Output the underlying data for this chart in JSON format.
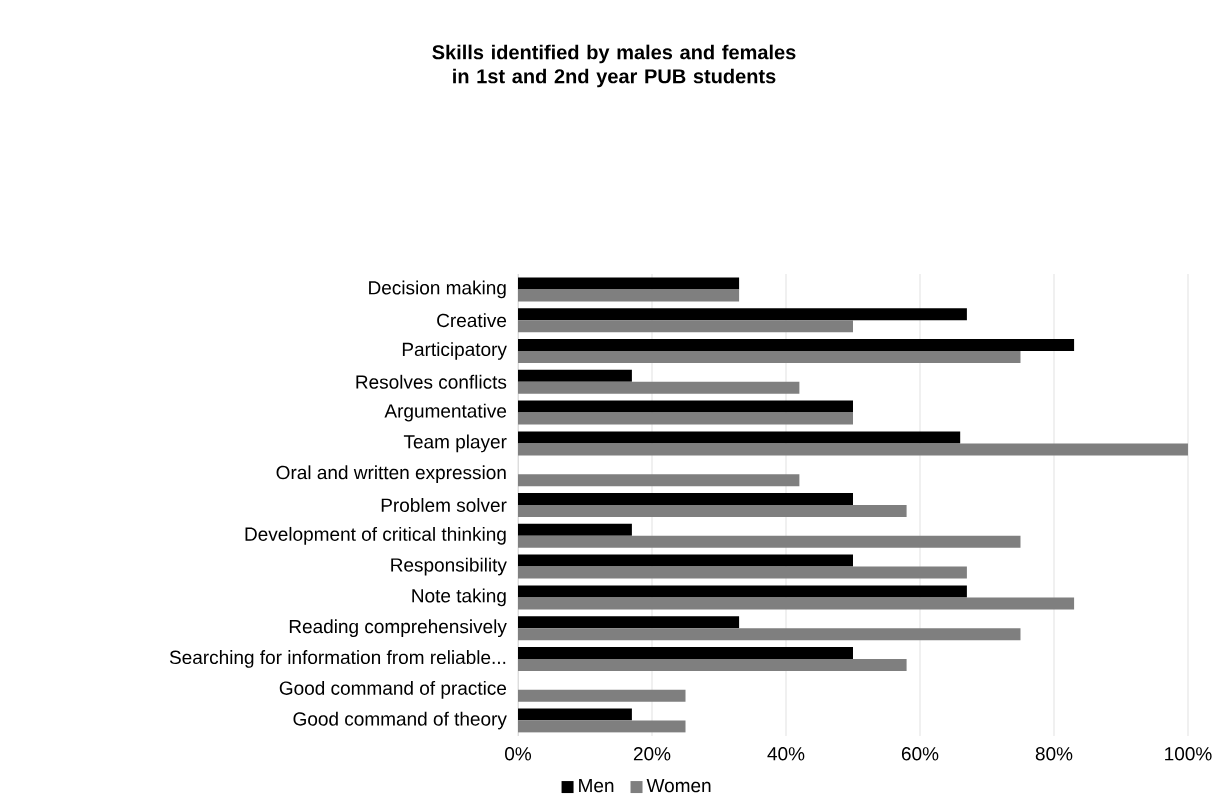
{
  "chart_data": {
    "type": "bar",
    "orientation": "horizontal",
    "title": "Skills identified by males and females in 1st and 2nd year PUB students",
    "categories": [
      "Decision making",
      "Creative",
      "Participatory",
      "Resolves conflicts",
      "Argumentative",
      "Team player",
      "Oral and written expression",
      "Problem solver",
      "Development of critical thinking",
      "Responsibility",
      "Note taking",
      "Reading comprehensively",
      "Searching for information from reliable...",
      "Good command of practice",
      "Good command of theory"
    ],
    "series": [
      {
        "name": "Men",
        "color": "#000000",
        "values": [
          33,
          67,
          83,
          17,
          50,
          66,
          null,
          50,
          17,
          50,
          67,
          33,
          50,
          null,
          17
        ]
      },
      {
        "name": "Women",
        "color": "#7f7f7f",
        "values": [
          33,
          50,
          75,
          42,
          50,
          100,
          42,
          58,
          75,
          67,
          83,
          75,
          58,
          25,
          25
        ]
      }
    ],
    "xlim": [
      0,
      100
    ],
    "xticks": [
      {
        "value": 0,
        "label": "0%"
      },
      {
        "value": 20,
        "label": "20%"
      },
      {
        "value": 40,
        "label": "40%"
      },
      {
        "value": 60,
        "label": "60%"
      },
      {
        "value": 80,
        "label": "80%"
      },
      {
        "value": 100,
        "label": "100%"
      }
    ],
    "grid": "x",
    "legend": "bottom"
  }
}
